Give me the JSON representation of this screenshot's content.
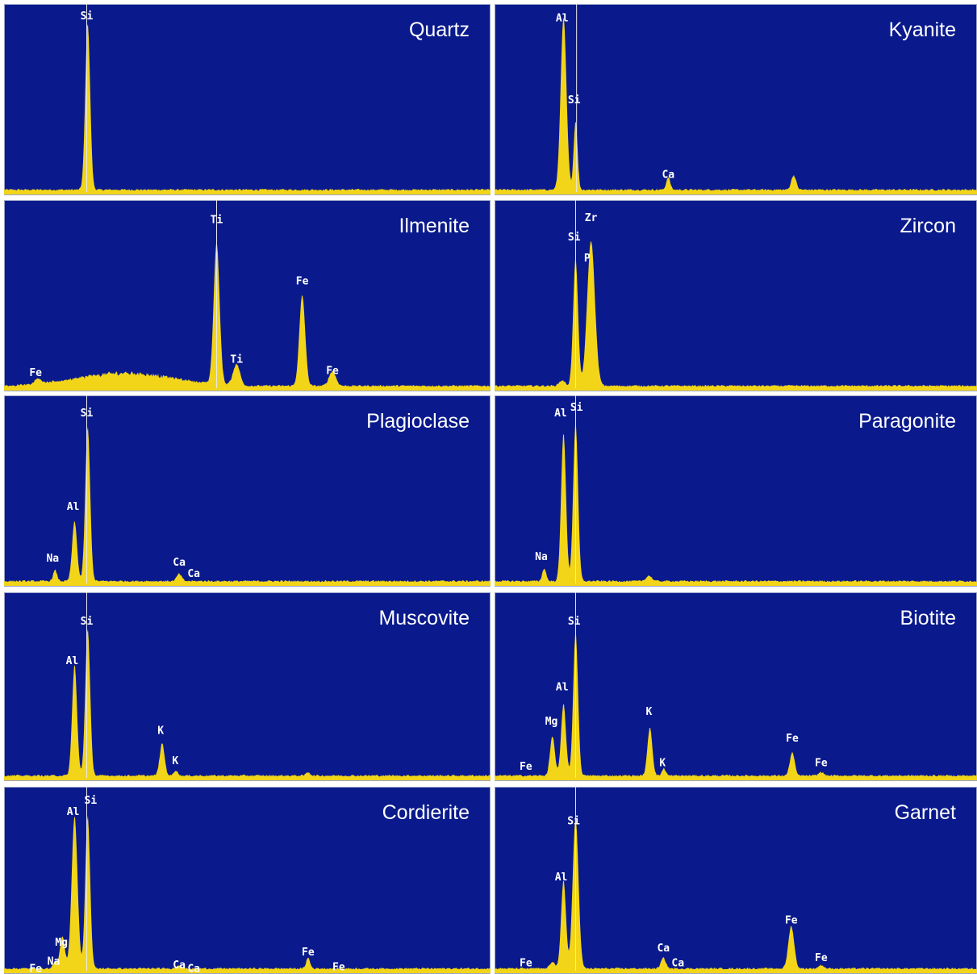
{
  "colors": {
    "background": "#0a1a8c",
    "spectrum": "#f2d519",
    "frame": "#9aa3c8",
    "text": "#ffffff",
    "marker": "#e8e8e8"
  },
  "chart_data": [
    {
      "type": "area",
      "title": "Quartz",
      "marker": 0.17,
      "peaks": [
        {
          "p": 0.172,
          "h": 0.92,
          "w": 0.005
        }
      ],
      "labels": [
        {
          "t": "Si",
          "x": 0.17,
          "y": 0.08
        }
      ]
    },
    {
      "type": "area",
      "title": "Kyanite",
      "marker": 0.17,
      "peaks": [
        {
          "p": 0.143,
          "h": 0.95,
          "w": 0.006
        },
        {
          "p": 0.168,
          "h": 0.38,
          "w": 0.004
        },
        {
          "p": 0.36,
          "h": 0.07,
          "w": 0.004
        },
        {
          "p": 0.62,
          "h": 0.08,
          "w": 0.005
        }
      ],
      "labels": [
        {
          "t": "Al",
          "x": 0.14,
          "y": 0.09
        },
        {
          "t": "Si",
          "x": 0.165,
          "y": 0.52
        },
        {
          "t": "Ca",
          "x": 0.36,
          "y": 0.91
        }
      ]
    },
    {
      "type": "area",
      "title": "Ilmenite",
      "marker": 0.437,
      "peaks": [
        {
          "p": 0.437,
          "h": 0.78,
          "w": 0.006
        },
        {
          "p": 0.478,
          "h": 0.12,
          "w": 0.007
        },
        {
          "p": 0.613,
          "h": 0.5,
          "w": 0.006
        },
        {
          "p": 0.675,
          "h": 0.08,
          "w": 0.007
        },
        {
          "p": 0.07,
          "h": 0.03,
          "w": 0.006
        }
      ],
      "background": {
        "center": 0.25,
        "height": 0.07,
        "width": 0.14
      },
      "labels": [
        {
          "t": "Ti",
          "x": 0.437,
          "y": 0.12
        },
        {
          "t": "Ti",
          "x": 0.478,
          "y": 0.85
        },
        {
          "t": "Fe",
          "x": 0.613,
          "y": 0.44
        },
        {
          "t": "Fe",
          "x": 0.675,
          "y": 0.91
        },
        {
          "t": "Fe",
          "x": 0.065,
          "y": 0.92
        }
      ]
    },
    {
      "type": "area",
      "title": "Zircon",
      "marker": 0.168,
      "peaks": [
        {
          "p": 0.168,
          "h": 0.7,
          "w": 0.005
        },
        {
          "p": 0.2,
          "h": 0.8,
          "w": 0.008
        },
        {
          "p": 0.14,
          "h": 0.03,
          "w": 0.006
        }
      ],
      "labels": [
        {
          "t": "Si",
          "x": 0.165,
          "y": 0.21
        },
        {
          "t": "Zr",
          "x": 0.2,
          "y": 0.11
        },
        {
          "t": "P",
          "x": 0.192,
          "y": 0.32
        }
      ]
    },
    {
      "type": "area",
      "title": "Plagioclase",
      "marker": 0.17,
      "peaks": [
        {
          "p": 0.105,
          "h": 0.06,
          "w": 0.004
        },
        {
          "p": 0.145,
          "h": 0.33,
          "w": 0.005
        },
        {
          "p": 0.172,
          "h": 0.85,
          "w": 0.005
        },
        {
          "p": 0.36,
          "h": 0.04,
          "w": 0.005
        }
      ],
      "labels": [
        {
          "t": "Si",
          "x": 0.17,
          "y": 0.11
        },
        {
          "t": "Al",
          "x": 0.142,
          "y": 0.6
        },
        {
          "t": "Na",
          "x": 0.1,
          "y": 0.87
        },
        {
          "t": "Ca",
          "x": 0.36,
          "y": 0.89
        },
        {
          "t": "Ca",
          "x": 0.39,
          "y": 0.95
        }
      ]
    },
    {
      "type": "area",
      "title": "Paragonite",
      "marker": 0.168,
      "peaks": [
        {
          "p": 0.143,
          "h": 0.82,
          "w": 0.005
        },
        {
          "p": 0.168,
          "h": 0.87,
          "w": 0.005
        },
        {
          "p": 0.103,
          "h": 0.07,
          "w": 0.004
        },
        {
          "p": 0.32,
          "h": 0.03,
          "w": 0.006
        }
      ],
      "labels": [
        {
          "t": "Al",
          "x": 0.137,
          "y": 0.11
        },
        {
          "t": "Si",
          "x": 0.17,
          "y": 0.08
        },
        {
          "t": "Na",
          "x": 0.097,
          "y": 0.86
        }
      ]
    },
    {
      "type": "area",
      "title": "Muscovite",
      "marker": 0.17,
      "peaks": [
        {
          "p": 0.145,
          "h": 0.62,
          "w": 0.005
        },
        {
          "p": 0.172,
          "h": 0.82,
          "w": 0.005
        },
        {
          "p": 0.325,
          "h": 0.18,
          "w": 0.005
        },
        {
          "p": 0.353,
          "h": 0.03,
          "w": 0.004
        },
        {
          "p": 0.625,
          "h": 0.02,
          "w": 0.004
        }
      ],
      "labels": [
        {
          "t": "Si",
          "x": 0.17,
          "y": 0.17
        },
        {
          "t": "Al",
          "x": 0.14,
          "y": 0.38
        },
        {
          "t": "K",
          "x": 0.322,
          "y": 0.75
        },
        {
          "t": "K",
          "x": 0.352,
          "y": 0.91
        }
      ]
    },
    {
      "type": "area",
      "title": "Biotite",
      "marker": 0.168,
      "peaks": [
        {
          "p": 0.12,
          "h": 0.22,
          "w": 0.005
        },
        {
          "p": 0.143,
          "h": 0.4,
          "w": 0.005
        },
        {
          "p": 0.168,
          "h": 0.8,
          "w": 0.005
        },
        {
          "p": 0.322,
          "h": 0.27,
          "w": 0.005
        },
        {
          "p": 0.351,
          "h": 0.04,
          "w": 0.004
        },
        {
          "p": 0.617,
          "h": 0.13,
          "w": 0.005
        },
        {
          "p": 0.677,
          "h": 0.02,
          "w": 0.005
        }
      ],
      "labels": [
        {
          "t": "Si",
          "x": 0.165,
          "y": 0.17
        },
        {
          "t": "Al",
          "x": 0.14,
          "y": 0.52
        },
        {
          "t": "Mg",
          "x": 0.118,
          "y": 0.7
        },
        {
          "t": "K",
          "x": 0.32,
          "y": 0.65
        },
        {
          "t": "K",
          "x": 0.348,
          "y": 0.92
        },
        {
          "t": "Fe",
          "x": 0.617,
          "y": 0.79
        },
        {
          "t": "Fe",
          "x": 0.677,
          "y": 0.92
        },
        {
          "t": "Fe",
          "x": 0.065,
          "y": 0.94
        }
      ]
    },
    {
      "type": "area",
      "title": "Cordierite",
      "marker": 0.17,
      "peaks": [
        {
          "p": 0.12,
          "h": 0.18,
          "w": 0.005
        },
        {
          "p": 0.145,
          "h": 0.86,
          "w": 0.006
        },
        {
          "p": 0.172,
          "h": 0.86,
          "w": 0.005
        },
        {
          "p": 0.105,
          "h": 0.04,
          "w": 0.004
        },
        {
          "p": 0.36,
          "h": 0.02,
          "w": 0.005
        },
        {
          "p": 0.625,
          "h": 0.06,
          "w": 0.004
        }
      ],
      "labels": [
        {
          "t": "Al",
          "x": 0.142,
          "y": 0.15
        },
        {
          "t": "Si",
          "x": 0.178,
          "y": 0.09
        },
        {
          "t": "Mg",
          "x": 0.118,
          "y": 0.85
        },
        {
          "t": "Na",
          "x": 0.102,
          "y": 0.95
        },
        {
          "t": "Fe",
          "x": 0.065,
          "y": 0.99
        },
        {
          "t": "Ca",
          "x": 0.36,
          "y": 0.97
        },
        {
          "t": "Ca",
          "x": 0.39,
          "y": 0.99
        },
        {
          "t": "Fe",
          "x": 0.625,
          "y": 0.9
        },
        {
          "t": "Fe",
          "x": 0.688,
          "y": 0.98
        }
      ]
    },
    {
      "type": "area",
      "title": "Garnet",
      "marker": 0.168,
      "peaks": [
        {
          "p": 0.143,
          "h": 0.5,
          "w": 0.005
        },
        {
          "p": 0.168,
          "h": 0.85,
          "w": 0.006
        },
        {
          "p": 0.35,
          "h": 0.06,
          "w": 0.005
        },
        {
          "p": 0.615,
          "h": 0.24,
          "w": 0.006
        },
        {
          "p": 0.677,
          "h": 0.02,
          "w": 0.005
        },
        {
          "p": 0.12,
          "h": 0.04,
          "w": 0.005
        }
      ],
      "labels": [
        {
          "t": "Si",
          "x": 0.164,
          "y": 0.2
        },
        {
          "t": "Al",
          "x": 0.138,
          "y": 0.5
        },
        {
          "t": "Ca",
          "x": 0.35,
          "y": 0.88
        },
        {
          "t": "Ca",
          "x": 0.38,
          "y": 0.96
        },
        {
          "t": "Fe",
          "x": 0.615,
          "y": 0.73
        },
        {
          "t": "Fe",
          "x": 0.677,
          "y": 0.93
        },
        {
          "t": "Fe",
          "x": 0.065,
          "y": 0.96
        }
      ]
    }
  ]
}
